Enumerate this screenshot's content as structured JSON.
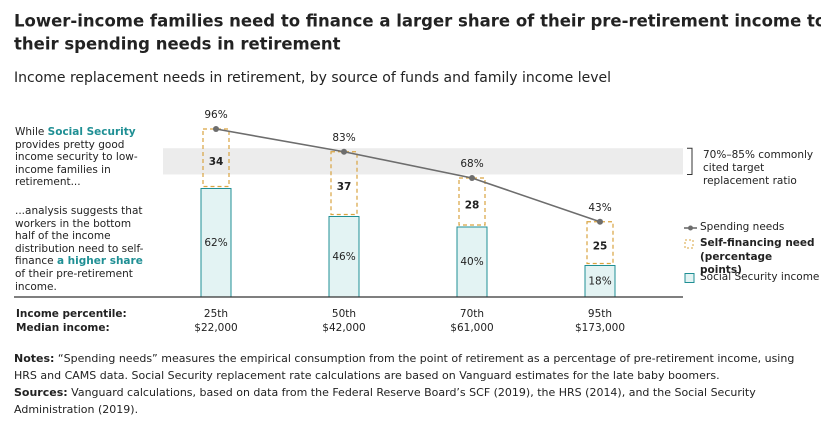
{
  "chart_data": {
    "type": "bar",
    "title": [
      "Lower-income families need to finance a larger share of their pre-retirement income to meet",
      "their spending needs in retirement"
    ],
    "subtitle": "Income replacement needs in retirement, by source of funds and family income level",
    "categories": [
      "25th",
      "50th",
      "70th",
      "95th"
    ],
    "median_incomes": [
      "$22,000",
      "$42,000",
      "$61,000",
      "$173,000"
    ],
    "row_labels": [
      "Income percentile:",
      "Median income:"
    ],
    "ylim": [
      0,
      100
    ],
    "band": [
      70,
      85
    ],
    "band_label": [
      "70%–85% commonly",
      "cited target",
      "replacement ratio"
    ],
    "series": [
      {
        "name": "Social Security income",
        "color": "#1f8f94",
        "values": [
          62,
          46,
          40,
          18
        ],
        "value_labels": [
          "62%",
          "46%",
          "40%",
          "18%"
        ]
      },
      {
        "name": "Self-financing need (percentage points)",
        "color": "#d9a441",
        "values": [
          34,
          37,
          28,
          25
        ]
      },
      {
        "name": "Spending needs",
        "color": "#6d6d6d",
        "values": [
          96,
          83,
          68,
          43
        ],
        "value_labels": [
          "96%",
          "83%",
          "68%",
          "43%"
        ]
      }
    ],
    "annotations": [
      [
        {
          "text": "While "
        },
        {
          "text": "Social Security",
          "highlight": true
        },
        {
          "text": " provides pretty good income security to low-income families in retirement..."
        }
      ],
      [
        {
          "text": "...analysis suggests that workers in the bottom half of the income distribution need to self-finance "
        },
        {
          "text": "a higher share",
          "highlight": true
        },
        {
          "text": " of their pre-retirement income."
        }
      ]
    ],
    "notes": [
      {
        "label": "Notes:",
        "text": " “Spending needs” measures the empirical consumption from the point of retirement as a percentage of pre-retirement income, using HRS and CAMS data. Social Security replacement rate calculations are based on Vanguard estimates for the late baby boomers."
      },
      {
        "label": "Sources:",
        "text": " Vanguard calculations, based on data from the Federal Reserve Board’s SCF (2019), the HRS (2014), and the Social Security Administration (2019)."
      }
    ]
  }
}
